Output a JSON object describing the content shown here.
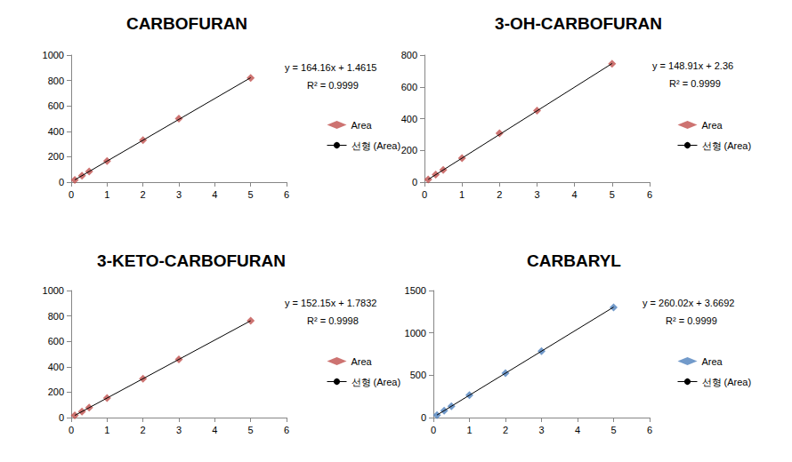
{
  "chart_data": [
    {
      "type": "scatter",
      "title": "CARBOFURAN",
      "annotations": [
        "y = 164.16x + 1.4615",
        "R² = 0.9999"
      ],
      "xlim": [
        0,
        6
      ],
      "xticks": [
        0,
        1,
        2,
        3,
        4,
        5,
        6
      ],
      "ylim": [
        0,
        1000
      ],
      "yticks": [
        0,
        200,
        400,
        600,
        800,
        1000
      ],
      "grid": false,
      "legend": "right",
      "series": [
        {
          "name": "Area",
          "type": "scatter",
          "marker": "diamond",
          "color": "#c0504d",
          "x": [
            0.1,
            0.3,
            0.5,
            1,
            2,
            3,
            5
          ],
          "values": [
            18,
            51,
            84,
            166,
            330,
            500,
            820
          ]
        },
        {
          "name": "선형 (Area)",
          "type": "line",
          "line_style": "solid",
          "color": "#000000",
          "x": [
            0.1,
            5
          ],
          "values": [
            18,
            822
          ]
        }
      ]
    },
    {
      "type": "scatter",
      "title": "3-OH-CARBOFURAN",
      "annotations": [
        "y = 148.91x + 2.36",
        "R² = 0.9999"
      ],
      "xlim": [
        0,
        6
      ],
      "xticks": [
        0,
        1,
        2,
        3,
        4,
        5,
        6
      ],
      "ylim": [
        0,
        800
      ],
      "yticks": [
        0,
        200,
        400,
        600,
        800
      ],
      "grid": false,
      "legend": "right",
      "series": [
        {
          "name": "Area",
          "type": "scatter",
          "marker": "diamond",
          "color": "#c0504d",
          "x": [
            0.1,
            0.3,
            0.5,
            1,
            2,
            3,
            5
          ],
          "values": [
            17,
            48,
            77,
            151,
            308,
            450,
            745
          ]
        },
        {
          "name": "선형 (Area)",
          "type": "line",
          "line_style": "solid",
          "color": "#000000",
          "x": [
            0.1,
            5
          ],
          "values": [
            17,
            747
          ]
        }
      ]
    },
    {
      "type": "scatter",
      "title": "3-KETO-CARBOFURAN",
      "annotations": [
        "y = 152.15x + 1.7832",
        "R² = 0.9998"
      ],
      "xlim": [
        0,
        6
      ],
      "xticks": [
        0,
        1,
        2,
        3,
        4,
        5,
        6
      ],
      "ylim": [
        0,
        1000
      ],
      "yticks": [
        0,
        200,
        400,
        600,
        800,
        1000
      ],
      "grid": false,
      "legend": "right",
      "series": [
        {
          "name": "Area",
          "type": "scatter",
          "marker": "diamond",
          "color": "#c0504d",
          "x": [
            0.1,
            0.3,
            0.5,
            1,
            2,
            3,
            5
          ],
          "values": [
            17,
            47,
            78,
            154,
            306,
            458,
            762
          ]
        },
        {
          "name": "선형 (Area)",
          "type": "line",
          "line_style": "solid",
          "color": "#000000",
          "x": [
            0.1,
            5
          ],
          "values": [
            17,
            762
          ]
        }
      ]
    },
    {
      "type": "scatter",
      "title": "CARBARYL",
      "annotations": [
        "y = 260.02x + 3.6692",
        "R² = 0.9999"
      ],
      "xlim": [
        0,
        6
      ],
      "xticks": [
        0,
        1,
        2,
        3,
        4,
        5,
        6
      ],
      "ylim": [
        0,
        1500
      ],
      "yticks": [
        0,
        500,
        1000,
        1500
      ],
      "grid": false,
      "legend": "right",
      "series": [
        {
          "name": "Area",
          "type": "scatter",
          "marker": "diamond",
          "color": "#4f81bd",
          "x": [
            0.1,
            0.3,
            0.5,
            1,
            2,
            3,
            5
          ],
          "values": [
            30,
            82,
            134,
            264,
            524,
            784,
            1300
          ]
        },
        {
          "name": "선형 (Area)",
          "type": "line",
          "line_style": "solid",
          "color": "#000000",
          "x": [
            0.1,
            5
          ],
          "values": [
            30,
            1304
          ]
        }
      ]
    }
  ]
}
